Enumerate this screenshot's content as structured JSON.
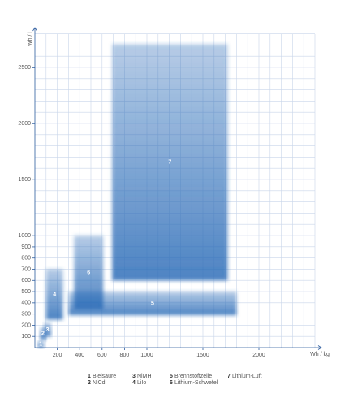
{
  "chart_data": {
    "type": "range-box",
    "x_label": "Wh / kg",
    "y_label": "Wh / l",
    "xlim": [
      0,
      2500
    ],
    "ylim": [
      0,
      2800
    ],
    "xticks": [
      200,
      400,
      600,
      800,
      1000,
      1500,
      2000
    ],
    "yticks": [
      100,
      200,
      300,
      400,
      500,
      600,
      700,
      800,
      900,
      1000,
      1500,
      2000,
      2500
    ],
    "color": "#2d6db8",
    "series": [
      {
        "label": "1",
        "name": "Bleisäure",
        "x": [
          25,
          80
        ],
        "values": [
          0,
          60
        ]
      },
      {
        "label": "2",
        "name": "NiCd",
        "x": [
          45,
          100
        ],
        "values": [
          70,
          180
        ]
      },
      {
        "label": "3",
        "name": "NiMH",
        "x": [
          80,
          145
        ],
        "values": [
          100,
          220
        ]
      },
      {
        "label": "4",
        "name": "LiIo",
        "x": [
          100,
          250
        ],
        "values": [
          250,
          700
        ]
      },
      {
        "label": "5",
        "name": "Brennstoffzelle",
        "x": [
          300,
          1800
        ],
        "values": [
          290,
          500
        ]
      },
      {
        "label": "6",
        "name": "Lithium-Schwefel",
        "x": [
          350,
          610
        ],
        "values": [
          340,
          1000
        ]
      },
      {
        "label": "7",
        "name": "Lithium-Luft",
        "x": [
          690,
          1720
        ],
        "values": [
          600,
          2710
        ]
      }
    ]
  }
}
